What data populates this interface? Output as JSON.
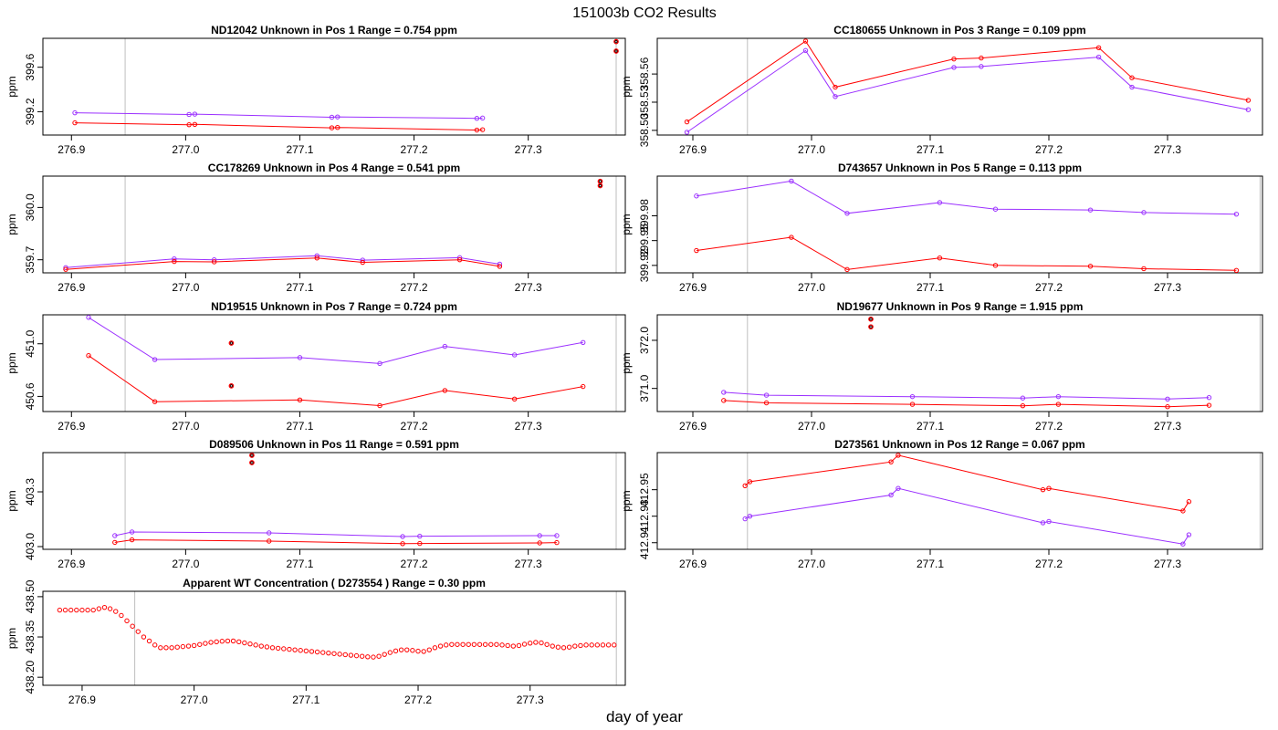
{
  "figure": {
    "title": "151003b  CO2 Results",
    "xlabel": "day of year"
  },
  "colors": {
    "sample": "#9b30ff",
    "reference": "#ff0000",
    "outlier": "#000000",
    "vline": "#bebebe",
    "frame": "#000000"
  },
  "chart_data": [
    {
      "type": "line",
      "title": "ND12042    Unknown in Pos 1         Range =  0.754 ppm",
      "ylabel": "ppm",
      "xlim": [
        276.875,
        277.385
      ],
      "ylim": [
        398.99,
        399.86
      ],
      "xticks": [
        "276.9",
        "277.0",
        "277.1",
        "277.2",
        "277.3"
      ],
      "yticks": [
        "399.2",
        "399.6"
      ],
      "vlines": [
        276.947,
        277.377
      ],
      "series": [
        {
          "name": "sample",
          "x": [
            276.903,
            277.003,
            277.008,
            277.128,
            277.133,
            277.255,
            277.26
          ],
          "y": [
            399.19,
            399.175,
            399.178,
            399.15,
            399.153,
            399.14,
            399.143
          ]
        },
        {
          "name": "reference",
          "x": [
            276.903,
            277.003,
            277.008,
            277.128,
            277.133,
            277.255,
            277.26
          ],
          "y": [
            399.1,
            399.083,
            399.086,
            399.055,
            399.058,
            399.035,
            399.038
          ]
        }
      ],
      "extra_points": [
        {
          "x": 277.377,
          "y": 399.83
        },
        {
          "x": 277.377,
          "y": 399.745
        }
      ]
    },
    {
      "type": "line",
      "title": "CC180655    Unknown in Pos 3         Range =  0.109 ppm",
      "ylabel": "ppm",
      "xlim": [
        276.87,
        277.38
      ],
      "ylim": [
        358.495,
        358.598
      ],
      "xticks": [
        "276.9",
        "277.0",
        "277.1",
        "277.2",
        "277.3"
      ],
      "yticks": [
        "358.50",
        "358.53",
        "358.56"
      ],
      "vlines": [
        276.946
      ],
      "series": [
        {
          "name": "sample",
          "x": [
            276.895,
            276.995,
            277.02,
            277.12,
            277.143,
            277.242,
            277.27,
            277.368
          ],
          "y": [
            358.498,
            358.585,
            358.536,
            358.567,
            358.568,
            358.578,
            358.546,
            358.522
          ]
        },
        {
          "name": "reference",
          "x": [
            276.895,
            276.995,
            277.02,
            277.12,
            277.143,
            277.242,
            277.27,
            277.368
          ],
          "y": [
            358.509,
            358.595,
            358.546,
            358.576,
            358.577,
            358.588,
            358.556,
            358.532
          ]
        }
      ],
      "extra_points": []
    },
    {
      "type": "line",
      "title": "CC178269    Unknown in Pos 4         Range =  0.541 ppm",
      "ylabel": "ppm",
      "xlim": [
        276.875,
        277.385
      ],
      "ylim": [
        359.625,
        360.18
      ],
      "xticks": [
        "276.9",
        "277.0",
        "277.1",
        "277.2",
        "277.3"
      ],
      "yticks": [
        "359.7",
        "360.0"
      ],
      "vlines": [
        276.947,
        277.377
      ],
      "series": [
        {
          "name": "sample",
          "x": [
            276.895,
            276.99,
            277.025,
            277.115,
            277.155,
            277.24,
            277.275
          ],
          "y": [
            359.655,
            359.705,
            359.7,
            359.723,
            359.698,
            359.712,
            359.675
          ]
        },
        {
          "name": "reference",
          "x": [
            276.895,
            276.99,
            277.025,
            277.115,
            277.155,
            277.24,
            277.275
          ],
          "y": [
            359.645,
            359.69,
            359.688,
            359.71,
            359.685,
            359.7,
            359.662
          ]
        }
      ],
      "extra_points": [
        {
          "x": 277.363,
          "y": 360.15
        },
        {
          "x": 277.363,
          "y": 360.125
        }
      ]
    },
    {
      "type": "line",
      "title": "D743657    Unknown in Pos 5         Range =  0.113 ppm",
      "ylabel": "ppm",
      "xlim": [
        276.87,
        277.38
      ],
      "ylim": [
        399.911,
        400.028
      ],
      "xticks": [
        "276.9",
        "277.0",
        "277.1",
        "277.2",
        "277.3"
      ],
      "yticks": [
        "399.92",
        "399.95",
        "399.98"
      ],
      "vlines": [
        276.946,
        277.378
      ],
      "series": [
        {
          "name": "sample",
          "x": [
            276.903,
            276.983,
            277.03,
            277.108,
            277.155,
            277.235,
            277.28,
            277.358
          ],
          "y": [
            400.004,
            400.022,
            399.983,
            399.996,
            399.988,
            399.987,
            399.984,
            399.982
          ]
        },
        {
          "name": "reference",
          "x": [
            276.903,
            276.983,
            277.03,
            277.108,
            277.155,
            277.235,
            277.28,
            277.358
          ],
          "y": [
            399.938,
            399.954,
            399.915,
            399.929,
            399.92,
            399.919,
            399.916,
            399.914
          ]
        }
      ],
      "extra_points": []
    },
    {
      "type": "line",
      "title": "ND19515    Unknown in Pos 7         Range =  0.724 ppm",
      "ylabel": "ppm",
      "xlim": [
        276.875,
        277.385
      ],
      "ylim": [
        450.485,
        451.22
      ],
      "xticks": [
        "276.9",
        "277.0",
        "277.1",
        "277.2",
        "277.3"
      ],
      "yticks": [
        "450.6",
        "451.0"
      ],
      "vlines": [
        276.947,
        277.377
      ],
      "series": [
        {
          "name": "sample",
          "x": [
            276.915,
            276.973,
            277.1,
            277.17,
            277.227,
            277.288,
            277.348
          ],
          "y": [
            451.2,
            450.88,
            450.895,
            450.85,
            450.98,
            450.915,
            451.01
          ]
        },
        {
          "name": "reference",
          "x": [
            276.915,
            276.973,
            277.1,
            277.17,
            277.227,
            277.288,
            277.348
          ],
          "y": [
            450.91,
            450.56,
            450.573,
            450.53,
            450.645,
            450.58,
            450.675
          ]
        }
      ],
      "extra_points": [
        {
          "x": 277.04,
          "y": 451.005
        },
        {
          "x": 277.04,
          "y": 450.68
        }
      ]
    },
    {
      "type": "line",
      "title": "ND19677    Unknown in Pos 9         Range =  1.915 ppm",
      "ylabel": "ppm",
      "xlim": [
        276.87,
        277.38
      ],
      "ylim": [
        370.52,
        372.53
      ],
      "xticks": [
        "276.9",
        "277.0",
        "277.1",
        "277.2",
        "277.3"
      ],
      "yticks": [
        "371.0",
        "372.0"
      ],
      "vlines": [
        276.946,
        277.378
      ],
      "series": [
        {
          "name": "sample",
          "x": [
            276.926,
            276.962,
            277.085,
            277.178,
            277.208,
            277.3,
            277.335
          ],
          "y": [
            370.92,
            370.86,
            370.83,
            370.8,
            370.83,
            370.78,
            370.81
          ]
        },
        {
          "name": "reference",
          "x": [
            276.926,
            276.962,
            277.085,
            277.178,
            277.208,
            277.3,
            277.335
          ],
          "y": [
            370.75,
            370.7,
            370.67,
            370.64,
            370.67,
            370.62,
            370.65
          ]
        }
      ],
      "extra_points": [
        {
          "x": 277.05,
          "y": 372.44
        },
        {
          "x": 277.05,
          "y": 372.28
        }
      ]
    },
    {
      "type": "line",
      "title": "D089506    Unknown in Pos 11         Range =  0.591 ppm",
      "ylabel": "ppm",
      "xlim": [
        276.875,
        277.385
      ],
      "ylim": [
        402.985,
        403.515
      ],
      "xticks": [
        "276.9",
        "277.0",
        "277.1",
        "277.2",
        "277.3"
      ],
      "yticks": [
        "403.0",
        "403.3"
      ],
      "vlines": [
        276.947,
        277.377
      ],
      "series": [
        {
          "name": "sample",
          "x": [
            276.938,
            276.953,
            277.073,
            277.19,
            277.205,
            277.31,
            277.325
          ],
          "y": [
            403.06,
            403.08,
            403.075,
            403.055,
            403.057,
            403.06,
            403.06
          ]
        },
        {
          "name": "reference",
          "x": [
            276.938,
            276.953,
            277.073,
            277.19,
            277.205,
            277.31,
            277.325
          ],
          "y": [
            403.023,
            403.037,
            403.03,
            403.016,
            403.017,
            403.02,
            403.022
          ]
        }
      ],
      "extra_points": [
        {
          "x": 277.058,
          "y": 403.5
        },
        {
          "x": 277.058,
          "y": 403.46
        }
      ]
    },
    {
      "type": "line",
      "title": "D273561    Unknown in Pos 12         Range =  0.067 ppm",
      "ylabel": "ppm",
      "xlim": [
        276.87,
        277.38
      ],
      "ylim": [
        412.905,
        412.978
      ],
      "xticks": [
        "276.9",
        "277.0",
        "277.1",
        "277.2",
        "277.3"
      ],
      "yticks": [
        "412.91",
        "412.93",
        "412.95"
      ],
      "vlines": [
        276.946,
        277.378
      ],
      "series": [
        {
          "name": "sample",
          "x": [
            276.944,
            276.948,
            277.067,
            277.073,
            277.195,
            277.2,
            277.313,
            277.318
          ],
          "y": [
            412.928,
            412.93,
            412.946,
            412.951,
            412.925,
            412.926,
            412.909,
            412.916
          ]
        },
        {
          "name": "reference",
          "x": [
            276.944,
            276.948,
            277.067,
            277.073,
            277.195,
            277.2,
            277.313,
            277.318
          ],
          "y": [
            412.953,
            412.956,
            412.971,
            412.976,
            412.95,
            412.951,
            412.934,
            412.941
          ]
        }
      ],
      "extra_points": []
    },
    {
      "type": "scatter",
      "title": "Apparent WT Concentration ( D273554 )        Range = 0.30 ppm",
      "ylabel": "ppm",
      "xlim": [
        276.865,
        277.385
      ],
      "ylim": [
        438.17,
        438.52
      ],
      "xticks": [
        "276.9",
        "277.0",
        "277.1",
        "277.2",
        "277.3"
      ],
      "yticks": [
        "438.20",
        "438.35",
        "438.50"
      ],
      "vlines": [
        276.947,
        277.377
      ],
      "series": [
        {
          "name": "reference",
          "x": [
            276.88,
            276.885,
            276.89,
            276.895,
            276.9,
            276.905,
            276.91,
            276.915,
            276.92,
            276.925,
            276.93,
            276.935,
            276.94,
            276.945,
            276.95,
            276.955,
            276.96,
            276.965,
            276.97,
            276.975,
            276.98,
            276.985,
            276.99,
            276.995,
            277.0,
            277.005,
            277.01,
            277.015,
            277.02,
            277.025,
            277.03,
            277.035,
            277.04,
            277.045,
            277.05,
            277.055,
            277.06,
            277.065,
            277.07,
            277.075,
            277.08,
            277.085,
            277.09,
            277.095,
            277.1,
            277.105,
            277.11,
            277.115,
            277.12,
            277.125,
            277.13,
            277.135,
            277.14,
            277.145,
            277.15,
            277.155,
            277.16,
            277.165,
            277.17,
            277.175,
            277.18,
            277.185,
            277.19,
            277.195,
            277.2,
            277.205,
            277.21,
            277.215,
            277.22,
            277.225,
            277.23,
            277.235,
            277.24,
            277.245,
            277.25,
            277.255,
            277.26,
            277.265,
            277.27,
            277.275,
            277.28,
            277.285,
            277.29,
            277.295,
            277.3,
            277.305,
            277.31,
            277.315,
            277.32,
            277.325,
            277.33,
            277.335,
            277.34,
            277.345,
            277.35,
            277.355,
            277.36,
            277.365,
            277.37,
            277.375
          ],
          "y": [
            438.45,
            438.45,
            438.45,
            438.45,
            438.45,
            438.45,
            438.45,
            438.455,
            438.46,
            438.455,
            438.445,
            438.43,
            438.41,
            438.39,
            438.37,
            438.35,
            438.335,
            438.32,
            438.31,
            438.31,
            438.31,
            438.312,
            438.314,
            438.316,
            438.318,
            438.322,
            438.326,
            438.33,
            438.332,
            438.334,
            438.335,
            438.335,
            438.332,
            438.328,
            438.324,
            438.32,
            438.316,
            438.313,
            438.31,
            438.308,
            438.306,
            438.304,
            438.302,
            438.3,
            438.298,
            438.296,
            438.294,
            438.292,
            438.29,
            438.288,
            438.286,
            438.284,
            438.282,
            438.28,
            438.278,
            438.276,
            438.275,
            438.278,
            438.285,
            438.292,
            438.298,
            438.302,
            438.302,
            438.3,
            438.297,
            438.296,
            438.302,
            438.31,
            438.316,
            438.32,
            438.322,
            438.322,
            438.322,
            438.322,
            438.322,
            438.322,
            438.322,
            438.322,
            438.322,
            438.32,
            438.318,
            438.316,
            438.318,
            438.323,
            438.327,
            438.33,
            438.328,
            438.322,
            438.316,
            438.312,
            438.31,
            438.312,
            438.316,
            438.318,
            438.32,
            438.32,
            438.32,
            438.32,
            438.32,
            438.32
          ]
        }
      ],
      "extra_points": []
    }
  ]
}
